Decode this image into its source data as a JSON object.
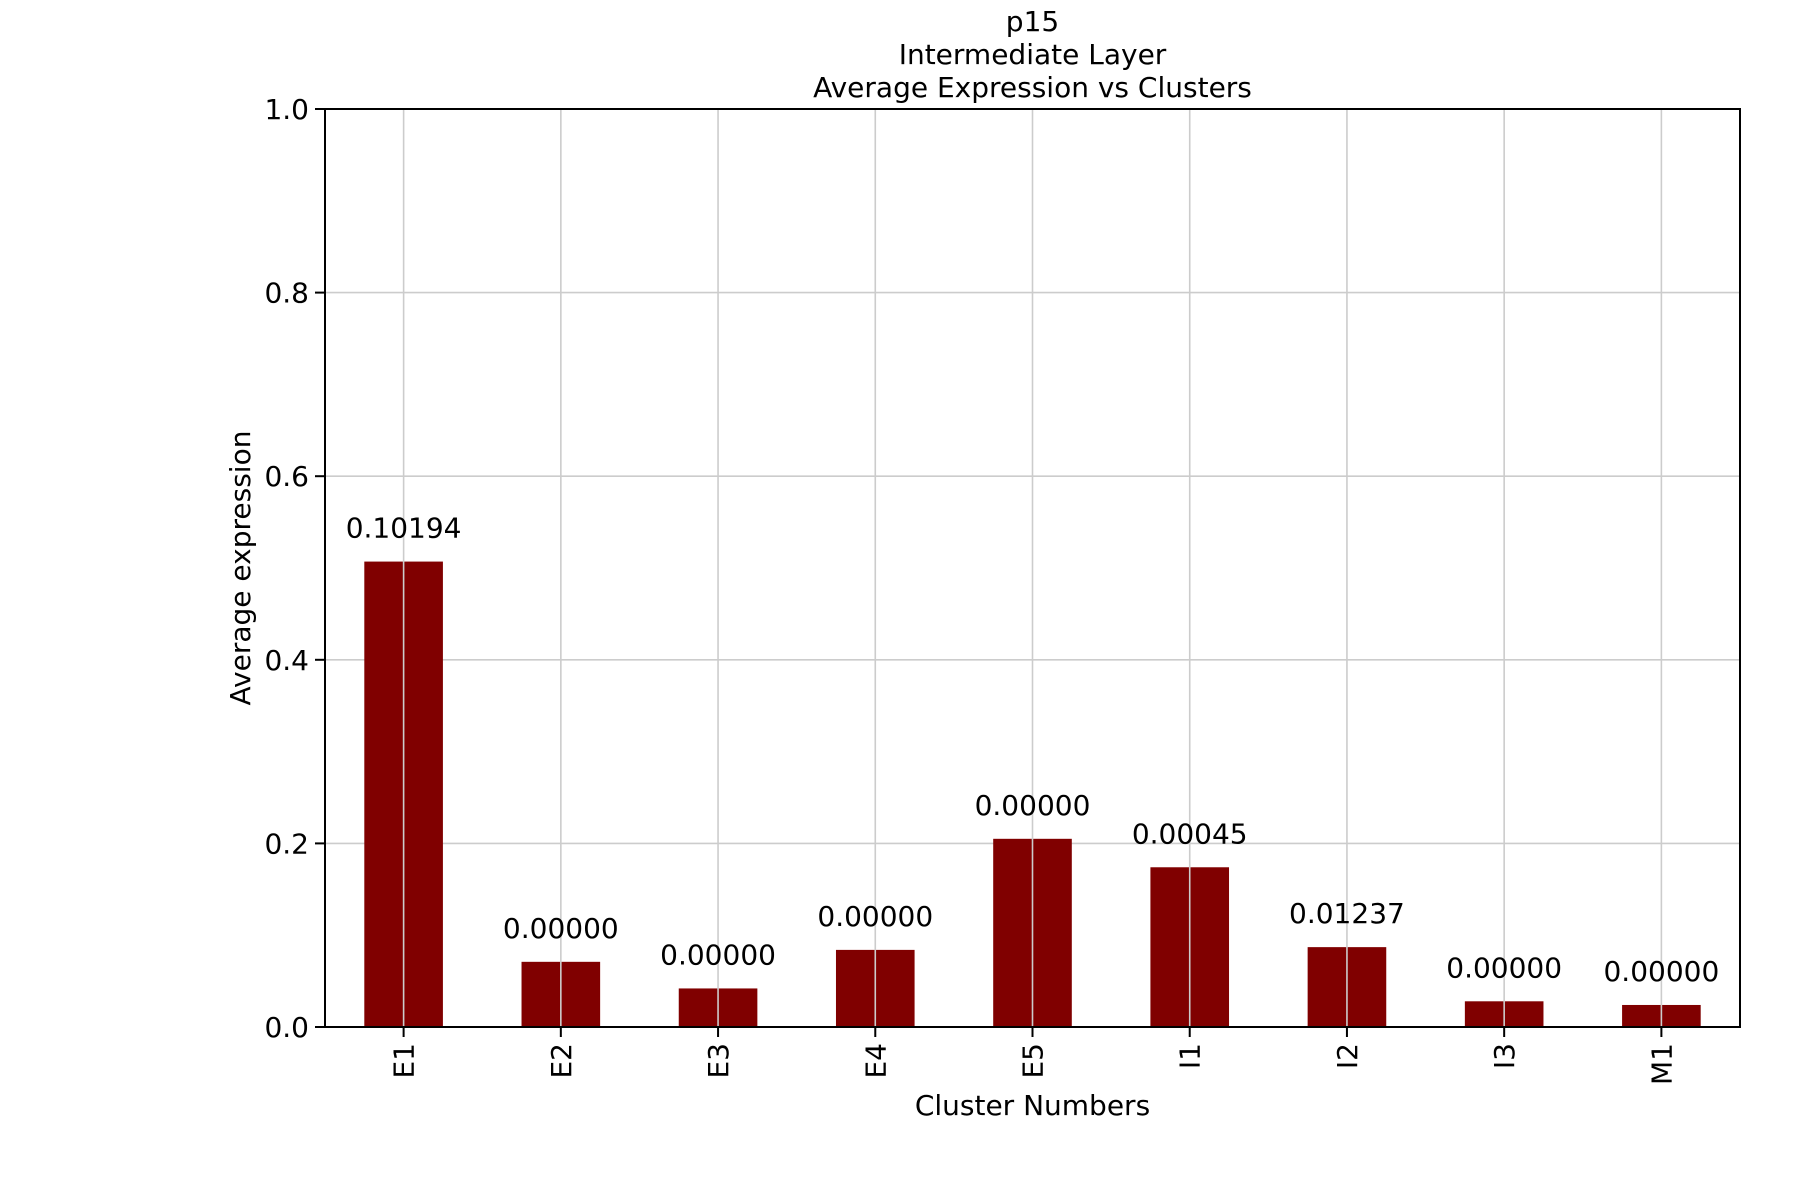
{
  "chart_data": {
    "type": "bar",
    "title_lines": [
      "p15",
      "Intermediate Layer",
      "Average Expression vs Clusters"
    ],
    "xlabel": "Cluster Numbers",
    "ylabel": "Average expression",
    "categories": [
      "E1",
      "E2",
      "E3",
      "E4",
      "E5",
      "I1",
      "I2",
      "I3",
      "M1"
    ],
    "values": [
      0.507,
      0.071,
      0.042,
      0.084,
      0.205,
      0.174,
      0.087,
      0.028,
      0.024
    ],
    "data_labels": [
      "0.10194",
      "0.00000",
      "0.00000",
      "0.00000",
      "0.00000",
      "0.00045",
      "0.01237",
      "0.00000",
      "0.00000"
    ],
    "ylim": [
      0,
      1.0
    ],
    "yticks": [
      "0.0",
      "0.2",
      "0.4",
      "0.6",
      "0.8",
      "1.0"
    ],
    "grid": true,
    "bar_color": "#800000"
  }
}
